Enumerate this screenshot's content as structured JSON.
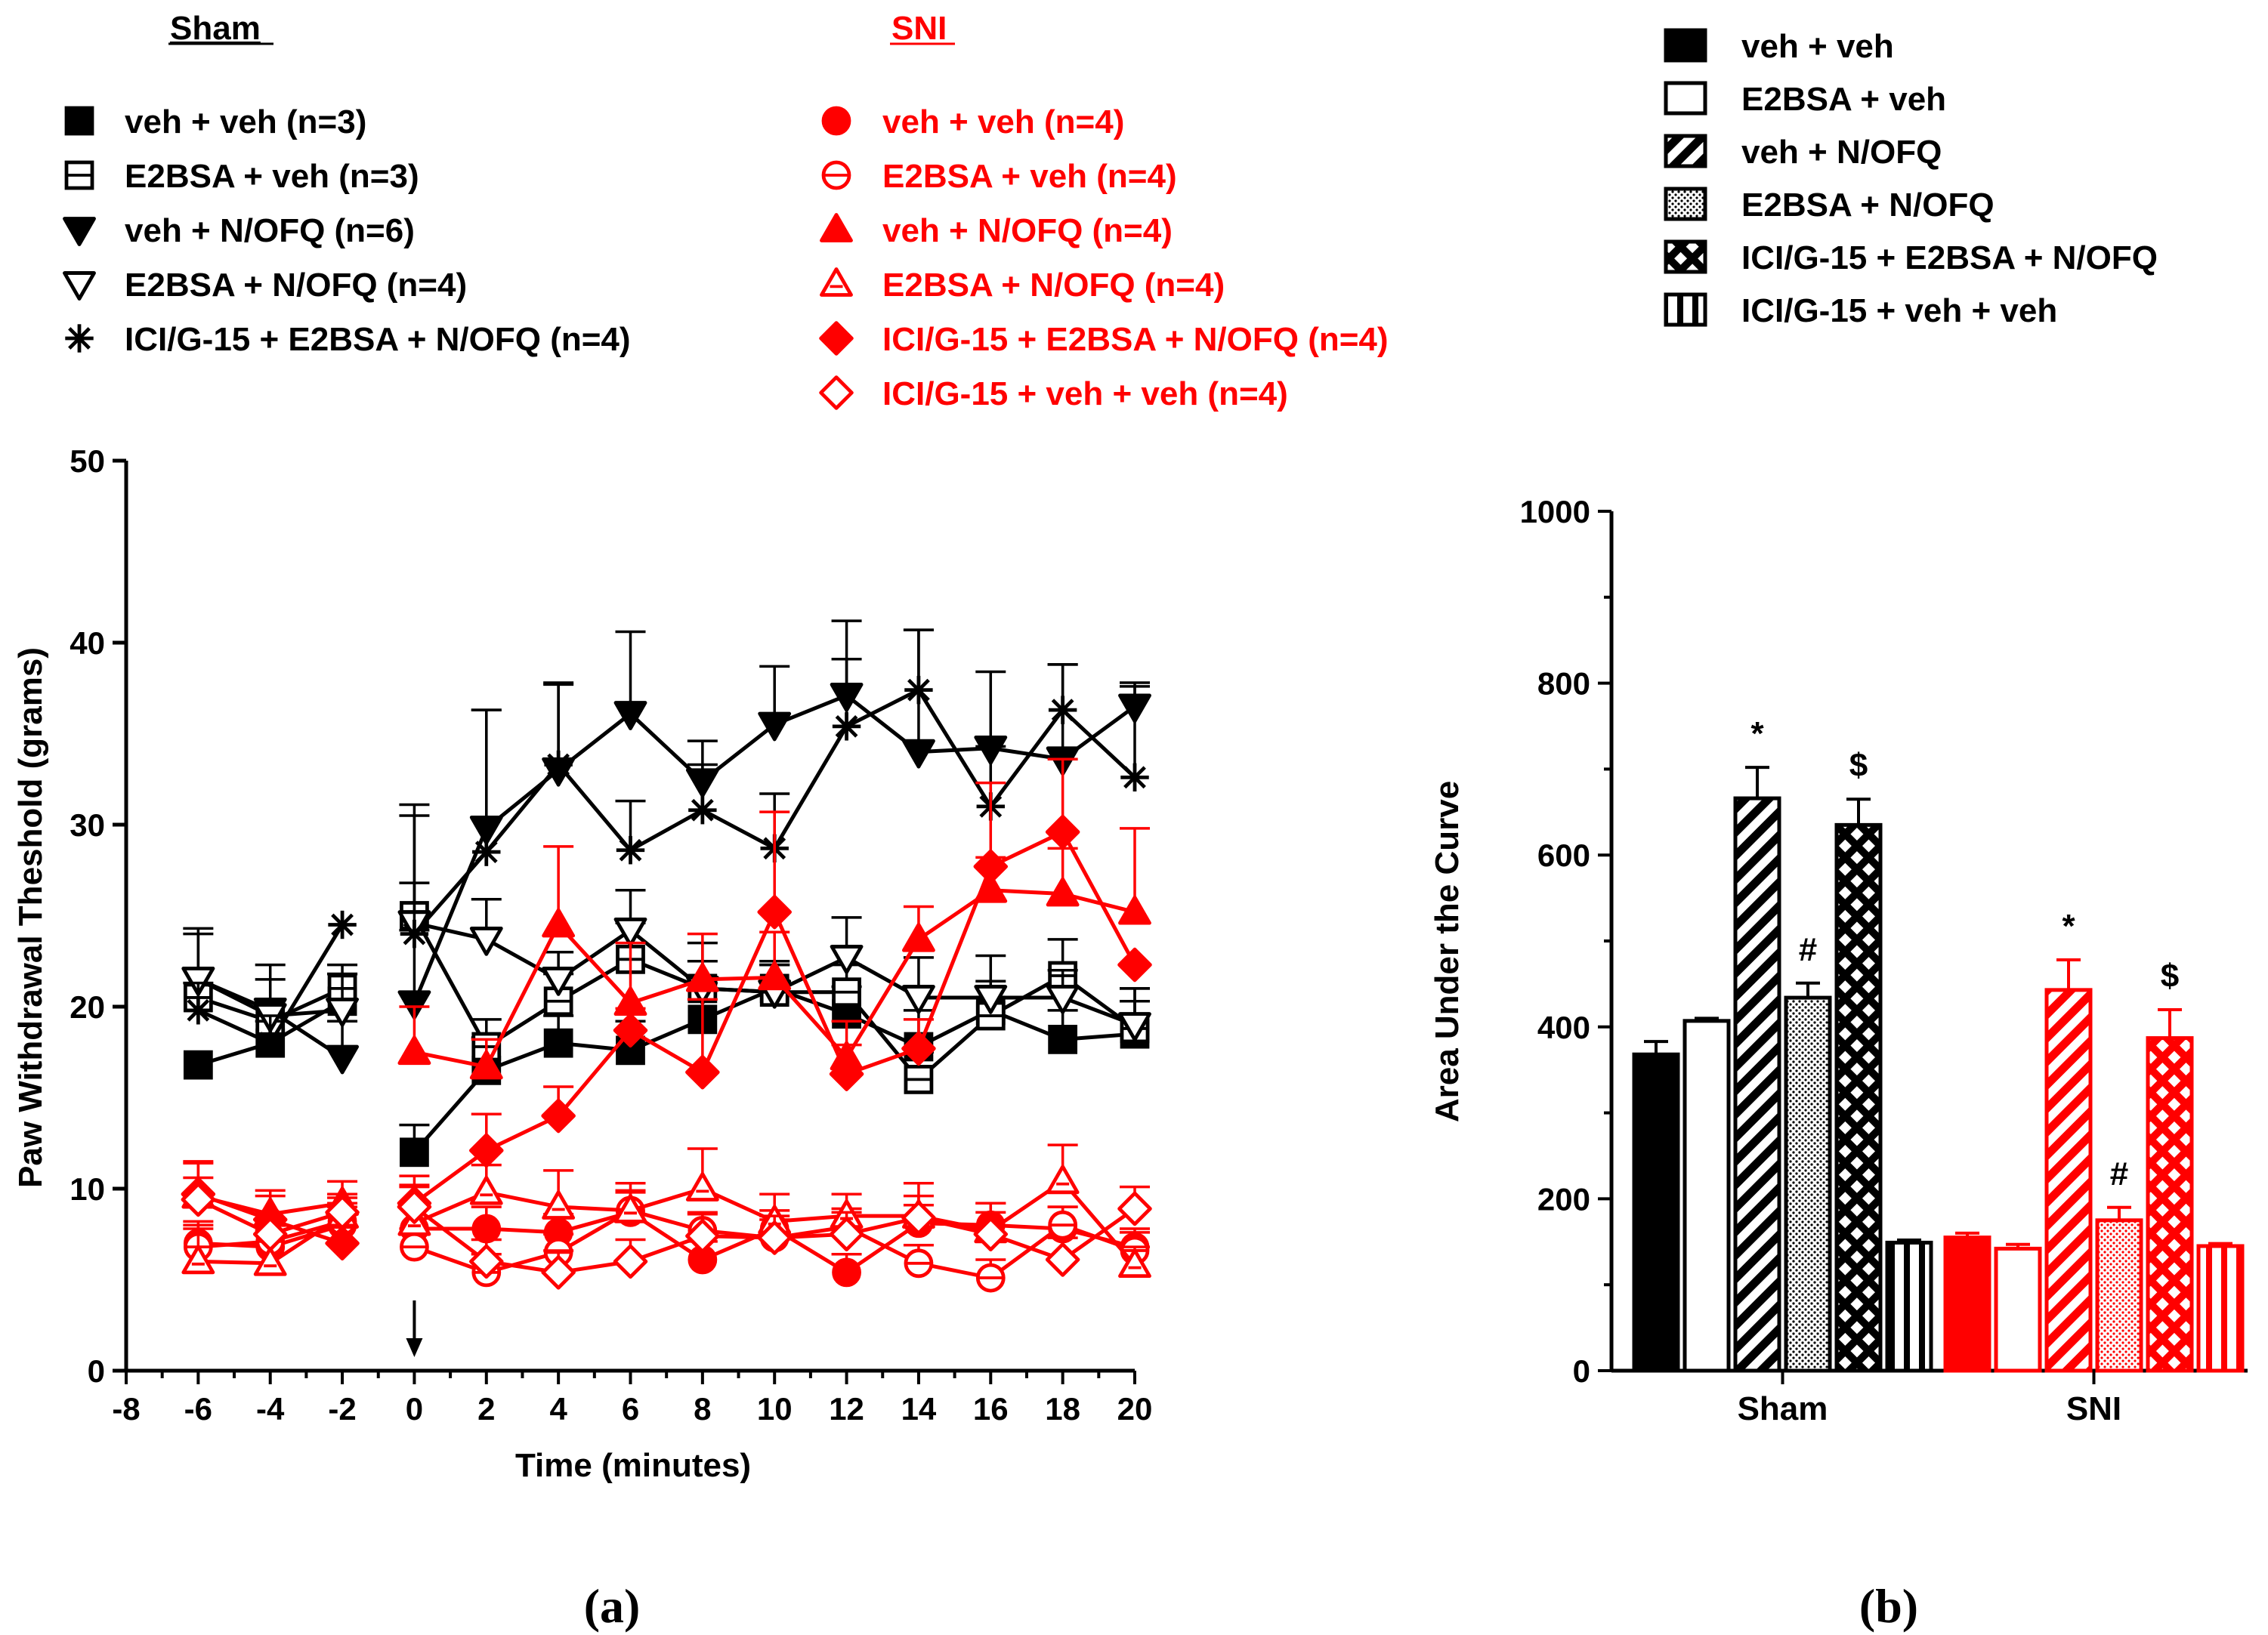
{
  "panel_labels": {
    "a": "(a)",
    "b": "(b)"
  },
  "legend_a": {
    "sham_header": "Sham",
    "sni_header": "SNI",
    "sham_entries": [
      {
        "label": "veh + veh (n=3)",
        "marker": "square-filled"
      },
      {
        "label": "E2BSA + veh (n=3)",
        "marker": "square-open"
      },
      {
        "label": "veh + N/OFQ (n=6)",
        "marker": "tri-down-filled"
      },
      {
        "label": "E2BSA + N/OFQ (n=4)",
        "marker": "tri-down-open"
      },
      {
        "label": "ICI/G-15 + E2BSA + N/OFQ (n=4)",
        "marker": "asterisk"
      }
    ],
    "sni_entries": [
      {
        "label": "veh + veh (n=4)",
        "marker": "circle-filled"
      },
      {
        "label": "E2BSA + veh (n=4)",
        "marker": "circle-open"
      },
      {
        "label": "veh + N/OFQ (n=4)",
        "marker": "tri-up-filled"
      },
      {
        "label": "E2BSA + N/OFQ (n=4)",
        "marker": "tri-up-open"
      },
      {
        "label": "ICI/G-15 + E2BSA + N/OFQ (n=4)",
        "marker": "diamond-filled"
      },
      {
        "label": "ICI/G-15 + veh + veh (n=4)",
        "marker": "diamond-open"
      }
    ]
  },
  "legend_b": [
    {
      "label": "veh + veh",
      "pattern": "solid"
    },
    {
      "label": "E2BSA + veh",
      "pattern": "open"
    },
    {
      "label": "veh + N/OFQ",
      "pattern": "hatch"
    },
    {
      "label": "E2BSA + N/OFQ",
      "pattern": "dots"
    },
    {
      "label": "ICI/G-15 + E2BSA + N/OFQ",
      "pattern": "cross"
    },
    {
      "label": "ICI/G-15 + veh + veh",
      "pattern": "vertical"
    }
  ],
  "colors": {
    "sham": "#000000",
    "sni": "#ff0000",
    "axis": "#000000"
  },
  "chart_data": [
    {
      "type": "line",
      "title": "",
      "xlabel": "Time (minutes)",
      "ylabel": "Paw Withdrawal Theshold (grams)",
      "xlim": [
        -8,
        20
      ],
      "ylim": [
        0,
        50
      ],
      "xticks": [
        -8,
        -6,
        -4,
        -2,
        0,
        2,
        4,
        6,
        8,
        10,
        12,
        14,
        16,
        18,
        20
      ],
      "yticks": [
        0,
        10,
        20,
        30,
        40,
        50
      ],
      "injection_arrow_x": 0,
      "x": [
        -6,
        -4,
        -2,
        0,
        2,
        4,
        6,
        8,
        10,
        12,
        14,
        16,
        18,
        20
      ],
      "series": [
        {
          "name": "Sham veh + veh (n=3)",
          "color": "sham",
          "marker": "square-filled",
          "values": [
            16.8,
            18.0,
            20.3,
            12.0,
            16.5,
            18.0,
            17.6,
            19.3,
            21.0,
            19.6,
            17.8,
            19.8,
            18.2,
            18.5
          ],
          "errors": [
            0,
            1.2,
            1.5,
            1.5,
            1.8,
            1.5,
            1.6,
            2.0,
            1.5,
            1.5,
            2.0,
            1.6,
            1.6,
            2.5
          ]
        },
        {
          "name": "Sham E2BSA + veh (n=3)",
          "color": "sham",
          "marker": "square-open",
          "values": [
            20.5,
            19.2,
            21.0,
            25.0,
            17.8,
            20.3,
            22.6,
            21.0,
            20.8,
            20.8,
            16.0,
            19.5,
            21.7,
            18.8
          ],
          "errors": [
            1.5,
            1.2,
            1.3,
            1.8,
            1.5,
            1.5,
            2.0,
            1.5,
            1.5,
            1.5,
            1.5,
            1.5,
            2.0,
            1.5
          ]
        },
        {
          "name": "Sham veh + N/OFQ (n=6)",
          "color": "sham",
          "marker": "tri-down-filled",
          "values": [
            21.5,
            19.8,
            17.2,
            20.2,
            29.8,
            33.0,
            36.1,
            32.4,
            35.5,
            37.1,
            34.0,
            34.2,
            33.6,
            36.5
          ],
          "errors": [
            2.8,
            2.5,
            2.0,
            4.0,
            6.5,
            4.7,
            4.5,
            2.2,
            3.2,
            4.1,
            6.7,
            4.2,
            5.2,
            1.3
          ]
        },
        {
          "name": "Sham E2BSA + N/OFQ (n=4)",
          "color": "sham",
          "marker": "tri-down-open",
          "values": [
            21.5,
            19.5,
            19.8,
            24.6,
            23.7,
            21.5,
            24.2,
            21.0,
            20.8,
            22.7,
            20.5,
            20.5,
            20.5,
            19.0
          ],
          "errors": [
            2.5,
            2.0,
            2.0,
            6.5,
            2.2,
            1.5,
            2.2,
            2.5,
            1.5,
            2.2,
            2.2,
            2.3,
            1.5,
            2.0
          ]
        },
        {
          "name": "Sham ICI/G-15 + E2BSA + N/OFQ (n=4)",
          "color": "sham",
          "marker": "asterisk",
          "values": [
            19.8,
            18.0,
            24.5,
            24.0,
            28.5,
            33.3,
            28.6,
            30.8,
            28.7,
            35.4,
            37.4,
            31.0,
            36.3,
            32.6
          ],
          "errors": [
            1.5,
            1.5,
            0,
            6.5,
            7.8,
            4.5,
            2.7,
            2.5,
            3.0,
            3.7,
            3.3,
            3.3,
            2.5,
            5.0
          ]
        },
        {
          "name": "SNI veh + veh (n=4)",
          "color": "sni",
          "marker": "circle-filled",
          "values": [
            7.0,
            6.8,
            8.0,
            7.8,
            7.8,
            7.6,
            8.7,
            6.1,
            7.8,
            5.4,
            8.1,
            8.0,
            7.8,
            6.8
          ],
          "errors": [
            1.2,
            1.2,
            1.0,
            1.2,
            1.2,
            1.0,
            1.2,
            1.0,
            1.0,
            1.0,
            1.0,
            1.2,
            1.2,
            1.0
          ]
        },
        {
          "name": "SNI E2BSA + veh (n=4)",
          "color": "sni",
          "marker": "circle-open",
          "values": [
            6.8,
            7.1,
            8.2,
            6.8,
            5.4,
            6.5,
            8.8,
            7.7,
            7.3,
            7.9,
            5.9,
            5.1,
            8.0,
            6.6
          ],
          "errors": [
            1.0,
            1.0,
            1.0,
            1.0,
            1.0,
            1.0,
            1.0,
            1.0,
            1.0,
            1.0,
            1.0,
            1.0,
            1.0,
            1.0
          ]
        },
        {
          "name": "SNI veh + N/OFQ (n=4)",
          "color": "sni",
          "marker": "tri-up-filled",
          "values": [
            9.6,
            8.6,
            9.2,
            17.5,
            16.7,
            24.5,
            20.2,
            21.5,
            21.6,
            17.2,
            23.7,
            26.4,
            26.2,
            25.2
          ],
          "errors": [
            1.8,
            1.3,
            1.2,
            2.5,
            1.5,
            4.3,
            3.3,
            2.5,
            2.5,
            2.0,
            1.8,
            1.8,
            2.5,
            4.6
          ]
        },
        {
          "name": "SNI E2BSA + N/OFQ (n=4)",
          "color": "sni",
          "marker": "tri-up-open",
          "values": [
            6.0,
            5.9,
            8.5,
            8.1,
            9.8,
            9.0,
            8.8,
            10.0,
            8.2,
            8.5,
            8.5,
            7.7,
            10.4,
            5.8
          ],
          "errors": [
            2.0,
            1.8,
            1.0,
            2.0,
            1.5,
            2.0,
            1.5,
            2.2,
            1.5,
            1.2,
            1.8,
            1.5,
            2.0,
            1.0
          ]
        },
        {
          "name": "SNI ICI/G-15 + E2BSA + N/OFQ (n=4)",
          "color": "sni",
          "marker": "diamond-filled",
          "values": [
            9.7,
            8.3,
            7.0,
            9.2,
            12.1,
            14.0,
            18.7,
            16.4,
            25.2,
            16.3,
            17.7,
            27.7,
            29.6,
            22.3
          ],
          "errors": [
            1.8,
            1.3,
            1.0,
            1.5,
            2.0,
            1.6,
            1.2,
            4.0,
            5.5,
            1.6,
            1.6,
            4.6,
            4.0,
            0
          ]
        },
        {
          "name": "SNI ICI/G-15 + veh + veh (n=4)",
          "color": "sni",
          "marker": "diamond-open",
          "values": [
            9.4,
            7.5,
            8.7,
            9.0,
            6.0,
            5.4,
            6.0,
            7.4,
            7.3,
            7.5,
            8.4,
            7.5,
            6.1,
            8.9
          ],
          "errors": [
            1.2,
            1.2,
            1.0,
            1.2,
            1.2,
            1.2,
            1.2,
            1.2,
            1.2,
            1.2,
            1.2,
            1.2,
            1.2,
            1.2
          ]
        }
      ]
    },
    {
      "type": "bar",
      "title": "",
      "xlabel": "",
      "ylabel": "Area Under the Curve",
      "ylim": [
        0,
        1000
      ],
      "yticks": [
        0,
        200,
        400,
        600,
        800,
        1000
      ],
      "categories": [
        "Sham",
        "SNI"
      ],
      "series": [
        {
          "name": "veh + veh",
          "pattern": "solid",
          "values": [
            368,
            155
          ],
          "errors": [
            15,
            5
          ],
          "annotations": [
            "",
            ""
          ]
        },
        {
          "name": "E2BSA + veh",
          "pattern": "open",
          "values": [
            407,
            142
          ],
          "errors": [
            3,
            5
          ],
          "annotations": [
            "",
            ""
          ]
        },
        {
          "name": "veh + N/OFQ",
          "pattern": "hatch",
          "values": [
            666,
            443
          ],
          "errors": [
            36,
            35
          ],
          "annotations": [
            "*",
            "*"
          ]
        },
        {
          "name": "E2BSA + N/OFQ",
          "pattern": "dots",
          "values": [
            434,
            175
          ],
          "errors": [
            17,
            15
          ],
          "annotations": [
            "#",
            "#"
          ]
        },
        {
          "name": "ICI/G-15 + E2BSA + N/OFQ",
          "pattern": "cross",
          "values": [
            635,
            387
          ],
          "errors": [
            30,
            33
          ],
          "annotations": [
            "$",
            "$"
          ]
        },
        {
          "name": "ICI/G-15 + veh + veh",
          "pattern": "vertical",
          "values": [
            149,
            145
          ],
          "errors": [
            3,
            3
          ],
          "annotations": [
            "",
            ""
          ]
        }
      ]
    }
  ]
}
